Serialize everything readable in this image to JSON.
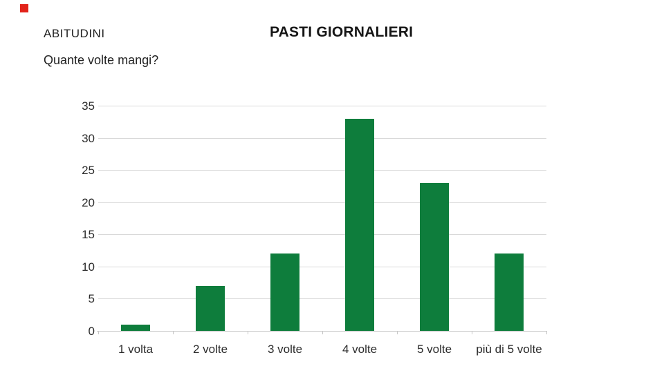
{
  "slide": {
    "header": "ABITUDINI",
    "title": "PASTI GIORNALIERI",
    "question": "Quante volte mangi?",
    "marker_color": "#e2231a"
  },
  "chart_data": {
    "type": "bar",
    "title": "",
    "xlabel": "",
    "ylabel": "",
    "categories": [
      "1 volta",
      "2 volte",
      "3 volte",
      "4 volte",
      "5 volte",
      "più di 5 volte"
    ],
    "values": [
      1,
      7,
      12,
      33,
      23,
      12
    ],
    "ylim": [
      0,
      35
    ],
    "yticks": [
      0,
      5,
      10,
      15,
      20,
      25,
      30,
      35
    ],
    "grid": true,
    "legend": "none",
    "bar_color": "#0e7d3c",
    "gridline_color": "#d9d9d9",
    "axis_line_color": "#c6c6c6",
    "tick_color": "#c6c6c6",
    "label_color": "#2b2b2b"
  }
}
